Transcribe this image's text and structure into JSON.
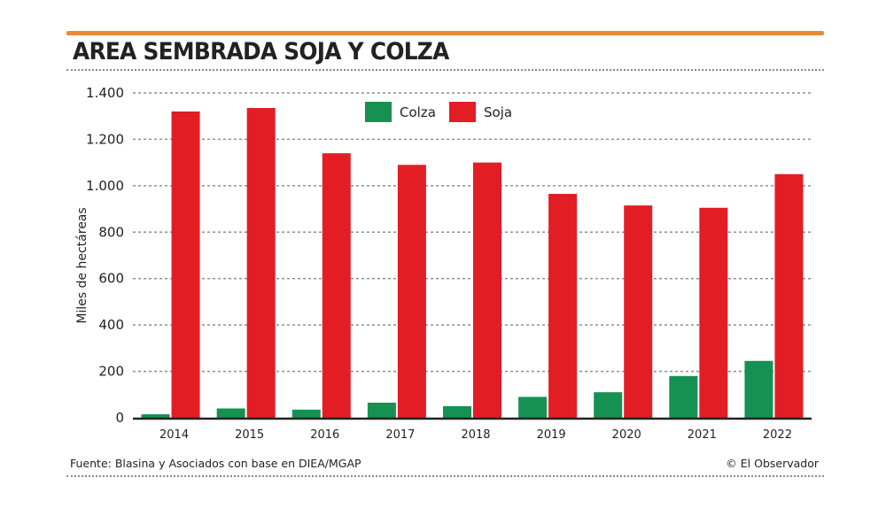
{
  "header": {
    "title": "AREA SEMBRADA SOJA Y COLZA",
    "accent_color": "#e88a2e"
  },
  "footer": {
    "source": "Fuente: Blasina y Asociados con base en DIEA/MGAP",
    "credit": "© El Observador"
  },
  "chart_data": {
    "type": "bar",
    "title": "AREA SEMBRADA SOJA Y COLZA",
    "xlabel": "",
    "ylabel": "Miles de hectáreas",
    "ylim": [
      0,
      1400
    ],
    "yticks": [
      0,
      200,
      400,
      600,
      800,
      1000,
      1200,
      1400
    ],
    "ytick_labels": [
      "0",
      "200",
      "400",
      "600",
      "800",
      "1.000",
      "1.200",
      "1.400"
    ],
    "grid": true,
    "legend_position": "top-center",
    "categories": [
      "2014",
      "2015",
      "2016",
      "2017",
      "2018",
      "2019",
      "2020",
      "2021",
      "2022"
    ],
    "series": [
      {
        "name": "Colza",
        "color": "#159151",
        "values": [
          15,
          40,
          35,
          65,
          50,
          90,
          110,
          180,
          245
        ]
      },
      {
        "name": "Soja",
        "color": "#e21d24",
        "values": [
          1320,
          1335,
          1140,
          1090,
          1100,
          965,
          915,
          905,
          1050
        ]
      }
    ]
  }
}
